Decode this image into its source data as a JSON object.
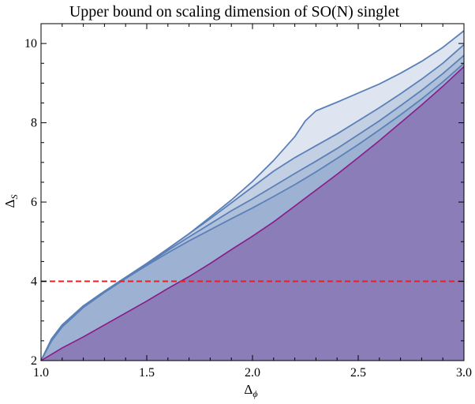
{
  "chart_data": {
    "type": "area",
    "title": "Upper bound on scaling dimension of SO(N) singlet",
    "xlabel": "Δ",
    "xlabel_sub": "ϕ",
    "ylabel": "Δ",
    "ylabel_sub": "S",
    "xlim": [
      1.0,
      3.0
    ],
    "ylim": [
      2,
      10.5
    ],
    "x_ticks": [
      "1.0",
      "1.5",
      "2.0",
      "2.5",
      "3.0"
    ],
    "x_tick_values": [
      1.0,
      1.5,
      2.0,
      2.5,
      3.0
    ],
    "y_ticks": [
      "2",
      "4",
      "6",
      "8",
      "10"
    ],
    "y_tick_values": [
      2,
      4,
      6,
      8,
      10
    ],
    "grid": false,
    "colors": {
      "bound_fill": "#5a7fb5",
      "bound_line": "#5b80b8",
      "lower_fill": "#8b7db8",
      "lower_line": "#8a1a8a",
      "reference_line": "#e8202a"
    },
    "reference_line": {
      "y": 4,
      "style": "dashed"
    },
    "series": [
      {
        "role": "upper-bound",
        "x": [
          1.0,
          1.05,
          1.1,
          1.2,
          1.3,
          1.4,
          1.5,
          1.6,
          1.7,
          1.8,
          1.9,
          2.0,
          2.1,
          2.2,
          2.25,
          2.3,
          2.4,
          2.5,
          2.6,
          2.7,
          2.8,
          2.9,
          3.0
        ],
        "y": [
          2.0,
          2.55,
          2.9,
          3.38,
          3.75,
          4.1,
          4.45,
          4.82,
          5.2,
          5.62,
          6.05,
          6.52,
          7.05,
          7.65,
          8.05,
          8.3,
          8.52,
          8.75,
          8.98,
          9.25,
          9.55,
          9.9,
          10.32
        ]
      },
      {
        "role": "upper-bound",
        "x": [
          1.0,
          1.05,
          1.1,
          1.2,
          1.3,
          1.4,
          1.5,
          1.6,
          1.7,
          1.8,
          1.9,
          2.0,
          2.1,
          2.2,
          2.3,
          2.4,
          2.5,
          2.6,
          2.7,
          2.8,
          2.9,
          3.0
        ],
        "y": [
          2.0,
          2.55,
          2.9,
          3.38,
          3.75,
          4.1,
          4.45,
          4.82,
          5.2,
          5.58,
          5.98,
          6.38,
          6.78,
          7.12,
          7.42,
          7.72,
          8.05,
          8.38,
          8.73,
          9.1,
          9.5,
          9.97
        ]
      },
      {
        "role": "upper-bound",
        "x": [
          1.0,
          1.05,
          1.1,
          1.2,
          1.3,
          1.4,
          1.5,
          1.6,
          1.7,
          1.8,
          1.9,
          2.0,
          2.1,
          2.2,
          2.3,
          2.4,
          2.5,
          2.6,
          2.7,
          2.8,
          2.9,
          3.0
        ],
        "y": [
          2.0,
          2.52,
          2.88,
          3.36,
          3.73,
          4.08,
          4.42,
          4.78,
          5.12,
          5.45,
          5.78,
          6.08,
          6.4,
          6.72,
          7.03,
          7.35,
          7.7,
          8.05,
          8.43,
          8.82,
          9.24,
          9.7
        ]
      },
      {
        "role": "upper-bound",
        "x": [
          1.0,
          1.05,
          1.1,
          1.2,
          1.3,
          1.4,
          1.5,
          1.6,
          1.7,
          1.8,
          1.9,
          2.0,
          2.1,
          2.2,
          2.3,
          2.4,
          2.5,
          2.6,
          2.7,
          2.8,
          2.9,
          3.0
        ],
        "y": [
          2.0,
          2.5,
          2.85,
          3.34,
          3.72,
          4.07,
          4.4,
          4.72,
          5.02,
          5.3,
          5.58,
          5.85,
          6.14,
          6.44,
          6.76,
          7.1,
          7.45,
          7.82,
          8.2,
          8.6,
          9.03,
          9.5
        ]
      },
      {
        "role": "lower",
        "x": [
          1.0,
          1.1,
          1.2,
          1.3,
          1.4,
          1.5,
          1.6,
          1.7,
          1.8,
          1.9,
          2.0,
          2.1,
          2.2,
          2.3,
          2.4,
          2.5,
          2.6,
          2.7,
          2.8,
          2.9,
          3.0
        ],
        "y": [
          2.0,
          2.32,
          2.6,
          2.9,
          3.2,
          3.5,
          3.82,
          4.12,
          4.45,
          4.8,
          5.14,
          5.5,
          5.9,
          6.3,
          6.7,
          7.12,
          7.55,
          8.0,
          8.45,
          8.92,
          9.42
        ]
      }
    ]
  }
}
